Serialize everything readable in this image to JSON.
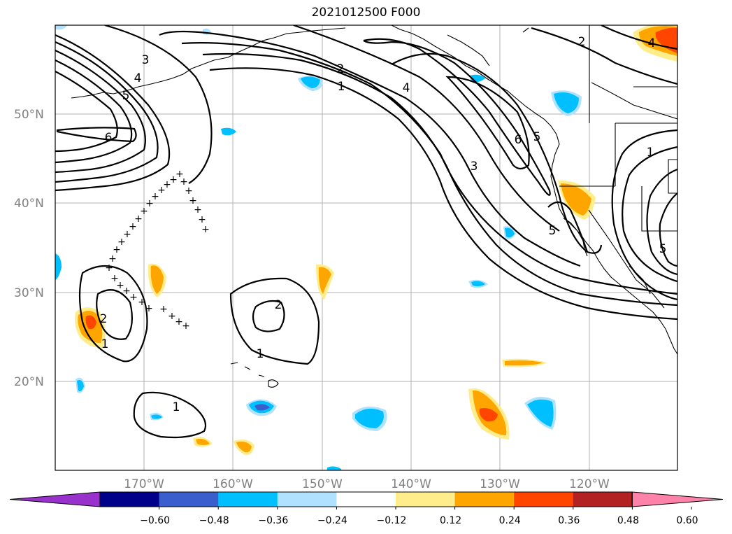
{
  "title": "2021012500 F000",
  "latitude_labels": [
    "50°N",
    "40°N",
    "30°N",
    "20°N"
  ],
  "longitude_labels": [
    "170°W",
    "160°W",
    "150°W",
    "140°W",
    "130°W",
    "120°W"
  ],
  "colorbar": {
    "tick_labels": [
      "−0.60",
      "−0.48",
      "−0.36",
      "−0.24",
      "−0.12",
      "0.12",
      "0.24",
      "0.36",
      "0.48",
      "0.60"
    ],
    "colors": [
      "#9932cc",
      "#00008b",
      "#3a5fcd",
      "#00bfff",
      "#b0e2ff",
      "#ffffff",
      "#ffec8b",
      "#ffa500",
      "#ff4500",
      "#b22222",
      "#ff82ab"
    ]
  },
  "contour_labels": [
    "1",
    "2",
    "3",
    "4",
    "5",
    "6"
  ],
  "track_marker": "+"
}
